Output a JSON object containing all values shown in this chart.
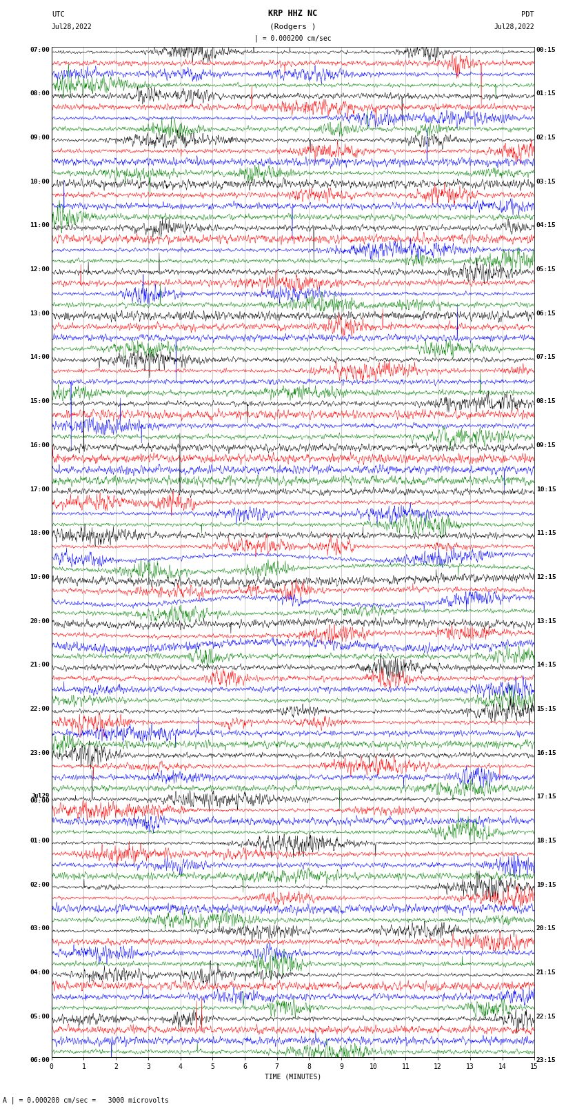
{
  "title_line1": "KRP HHZ NC",
  "title_line2": "(Rodgers )",
  "scale_label": "| = 0.000200 cm/sec",
  "left_label_top": "UTC",
  "left_label_date": "Jul28,2022",
  "right_label_top": "PDT",
  "right_label_date": "Jul28,2022",
  "xlabel": "TIME (MINUTES)",
  "footer": "A | = 0.000200 cm/sec =   3000 microvolts",
  "utc_labels": [
    "07:00",
    "",
    "",
    "",
    "08:00",
    "",
    "",
    "",
    "09:00",
    "",
    "",
    "",
    "10:00",
    "",
    "",
    "",
    "11:00",
    "",
    "",
    "",
    "12:00",
    "",
    "",
    "",
    "13:00",
    "",
    "",
    "",
    "14:00",
    "",
    "",
    "",
    "15:00",
    "",
    "",
    "",
    "16:00",
    "",
    "",
    "",
    "17:00",
    "",
    "",
    "",
    "18:00",
    "",
    "",
    "",
    "19:00",
    "",
    "",
    "",
    "20:00",
    "",
    "",
    "",
    "21:00",
    "",
    "",
    "",
    "22:00",
    "",
    "",
    "",
    "23:00",
    "",
    "",
    "",
    "Jul29\n00:00",
    "",
    "",
    "",
    "01:00",
    "",
    "",
    "",
    "02:00",
    "",
    "",
    "",
    "03:00",
    "",
    "",
    "",
    "04:00",
    "",
    "",
    "",
    "05:00",
    "",
    "",
    "",
    "06:00",
    "",
    "",
    ""
  ],
  "pdt_labels": [
    "00:15",
    "",
    "",
    "",
    "01:15",
    "",
    "",
    "",
    "02:15",
    "",
    "",
    "",
    "03:15",
    "",
    "",
    "",
    "04:15",
    "",
    "",
    "",
    "05:15",
    "",
    "",
    "",
    "06:15",
    "",
    "",
    "",
    "07:15",
    "",
    "",
    "",
    "08:15",
    "",
    "",
    "",
    "09:15",
    "",
    "",
    "",
    "10:15",
    "",
    "",
    "",
    "11:15",
    "",
    "",
    "",
    "12:15",
    "",
    "",
    "",
    "13:15",
    "",
    "",
    "",
    "14:15",
    "",
    "",
    "",
    "15:15",
    "",
    "",
    "",
    "16:15",
    "",
    "",
    "",
    "17:15",
    "",
    "",
    "",
    "18:15",
    "",
    "",
    "",
    "19:15",
    "",
    "",
    "",
    "20:15",
    "",
    "",
    "",
    "21:15",
    "",
    "",
    "",
    "22:15",
    "",
    "",
    "",
    "23:15",
    "",
    "",
    ""
  ],
  "trace_colors": [
    "black",
    "red",
    "blue",
    "green"
  ],
  "n_rows": 92,
  "n_minutes": 15,
  "samples_per_row": 1800,
  "bg_color": "white",
  "trace_linewidth": 0.35,
  "row_amplitude": 0.3,
  "seed": 12345
}
